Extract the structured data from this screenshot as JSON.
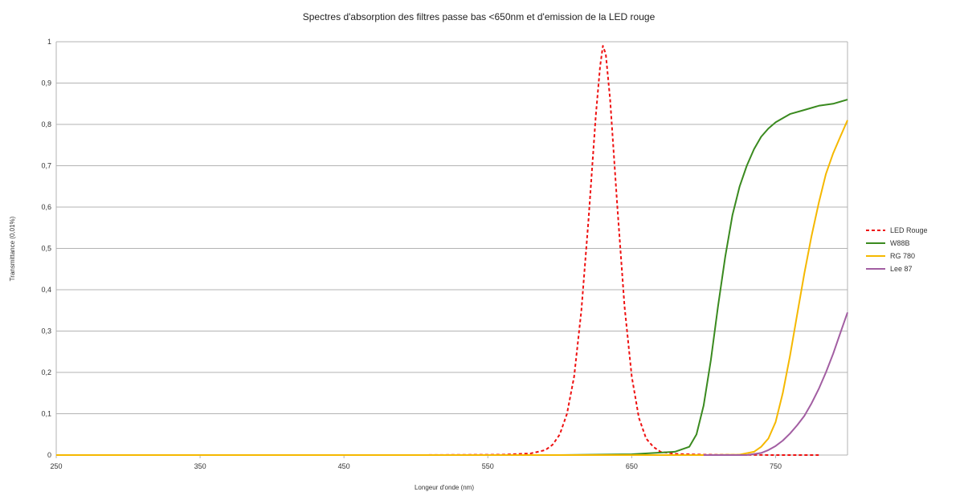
{
  "chart_data": {
    "type": "line",
    "title": "Spectres d'absorption des filtres passe bas <650nm et d'emission de la LED rouge",
    "xlabel": "Longeur d'onde (nm)",
    "ylabel": "Transmittance (0,01%)",
    "xlim": [
      250,
      800
    ],
    "ylim": [
      0,
      1
    ],
    "x_ticks": [
      250,
      350,
      450,
      550,
      650,
      750
    ],
    "x_tick_labels": [
      "250",
      "350",
      "450",
      "550",
      "650",
      "750"
    ],
    "y_ticks": [
      0,
      0.1,
      0.2,
      0.3,
      0.4,
      0.5,
      0.6,
      0.7,
      0.8,
      0.9,
      1
    ],
    "y_tick_labels": [
      "0",
      "0,1",
      "0,2",
      "0,3",
      "0,4",
      "0,5",
      "0,6",
      "0,7",
      "0,8",
      "0,9",
      "1"
    ],
    "grid": "horizontal",
    "legend_position": "right",
    "series": [
      {
        "name": "LED Rouge",
        "color": "#ee1111",
        "dash": true,
        "x": [
          380,
          500,
          560,
          580,
          590,
          595,
          600,
          605,
          610,
          615,
          620,
          625,
          628,
          630,
          632,
          635,
          640,
          645,
          650,
          655,
          660,
          665,
          670,
          680,
          700,
          750,
          780
        ],
        "y": [
          0,
          0,
          0.001,
          0.004,
          0.012,
          0.025,
          0.05,
          0.1,
          0.19,
          0.35,
          0.57,
          0.82,
          0.94,
          0.99,
          0.97,
          0.86,
          0.6,
          0.36,
          0.19,
          0.09,
          0.04,
          0.02,
          0.008,
          0.003,
          0.001,
          0,
          0
        ]
      },
      {
        "name": "W88B",
        "color": "#3a8a1f",
        "dash": false,
        "x": [
          250,
          600,
          650,
          680,
          690,
          695,
          700,
          705,
          710,
          715,
          720,
          725,
          730,
          735,
          740,
          745,
          750,
          755,
          760,
          770,
          780,
          790,
          800
        ],
        "y": [
          0,
          0,
          0.002,
          0.008,
          0.02,
          0.05,
          0.12,
          0.23,
          0.36,
          0.48,
          0.58,
          0.65,
          0.7,
          0.74,
          0.77,
          0.79,
          0.805,
          0.815,
          0.825,
          0.835,
          0.845,
          0.85,
          0.86
        ]
      },
      {
        "name": "RG 780",
        "color": "#f5b800",
        "dash": false,
        "x": [
          250,
          700,
          725,
          735,
          740,
          745,
          750,
          755,
          760,
          765,
          770,
          775,
          780,
          785,
          790,
          795,
          800
        ],
        "y": [
          0,
          0,
          0.001,
          0.008,
          0.02,
          0.04,
          0.08,
          0.15,
          0.24,
          0.34,
          0.44,
          0.53,
          0.61,
          0.68,
          0.73,
          0.77,
          0.81
        ]
      },
      {
        "name": "Lee 87",
        "color": "#a25ea2",
        "dash": false,
        "x": [
          700,
          730,
          740,
          745,
          750,
          755,
          760,
          765,
          770,
          775,
          780,
          785,
          790,
          795,
          800
        ],
        "y": [
          0,
          0,
          0.005,
          0.012,
          0.022,
          0.035,
          0.052,
          0.072,
          0.095,
          0.125,
          0.16,
          0.2,
          0.245,
          0.295,
          0.345
        ]
      }
    ]
  }
}
